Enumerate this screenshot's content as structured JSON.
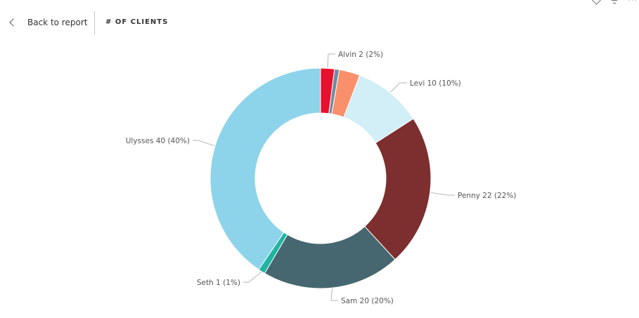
{
  "header": {
    "back_label": "Back to report",
    "title": "# OF CLIENTS"
  },
  "toolbar": {
    "icons": [
      "pin-icon",
      "filter-icon",
      "more-options-icon"
    ]
  },
  "chart_data": {
    "type": "pie",
    "donut": true,
    "title": "# OF CLIENTS",
    "slices": [
      {
        "name": "Alvin",
        "value": 2,
        "percent": "2%",
        "color": "#E8112D",
        "labeled": true
      },
      {
        "name": "",
        "value": 0.7,
        "percent": "",
        "color": "#6E8DA3",
        "labeled": false
      },
      {
        "name": "",
        "value": 3,
        "percent": "",
        "color": "#FA8F6B",
        "labeled": false
      },
      {
        "name": "Levi",
        "value": 10,
        "percent": "10%",
        "color": "#D2EEF6",
        "labeled": true
      },
      {
        "name": "Penny",
        "value": 22,
        "percent": "22%",
        "color": "#7D2E2F",
        "labeled": true
      },
      {
        "name": "Sam",
        "value": 20,
        "percent": "20%",
        "color": "#46676F",
        "labeled": true
      },
      {
        "name": "Seth",
        "value": 1,
        "percent": "1%",
        "color": "#1FB5A2",
        "labeled": true
      },
      {
        "name": "Ulysses",
        "value": 40,
        "percent": "40%",
        "color": "#8DD4EA",
        "labeled": true
      }
    ]
  }
}
